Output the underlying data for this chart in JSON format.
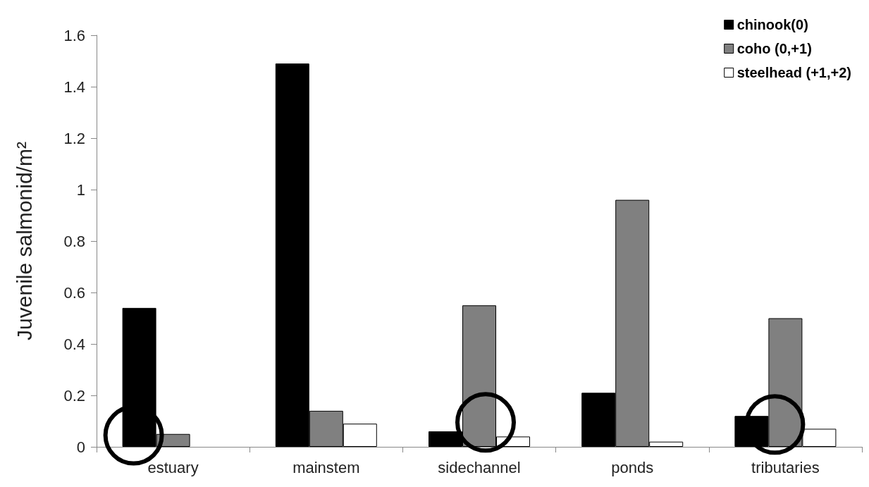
{
  "chart_data": {
    "type": "bar",
    "ylabel": "Juvenile salmonid/m²",
    "categories": [
      "estuary",
      "mainstem",
      "sidechannel",
      "ponds",
      "tributaries"
    ],
    "series": [
      {
        "name": "chinook(0)",
        "color": "#000000",
        "values": [
          0.54,
          1.49,
          0.06,
          0.21,
          0.12
        ]
      },
      {
        "name": "coho (0,+1)",
        "color": "#808080",
        "values": [
          0.05,
          0.14,
          0.55,
          0.96,
          0.5
        ]
      },
      {
        "name": "steelhead (+1,+2)",
        "color": "#ffffff",
        "values": [
          null,
          0.09,
          0.04,
          0.02,
          0.07
        ]
      }
    ],
    "ylim": [
      0,
      1.6
    ],
    "yticks": [
      0,
      0.2,
      0.4,
      0.6,
      0.8,
      1,
      1.2,
      1.4,
      1.6
    ],
    "grid": false,
    "legend": "top right"
  }
}
